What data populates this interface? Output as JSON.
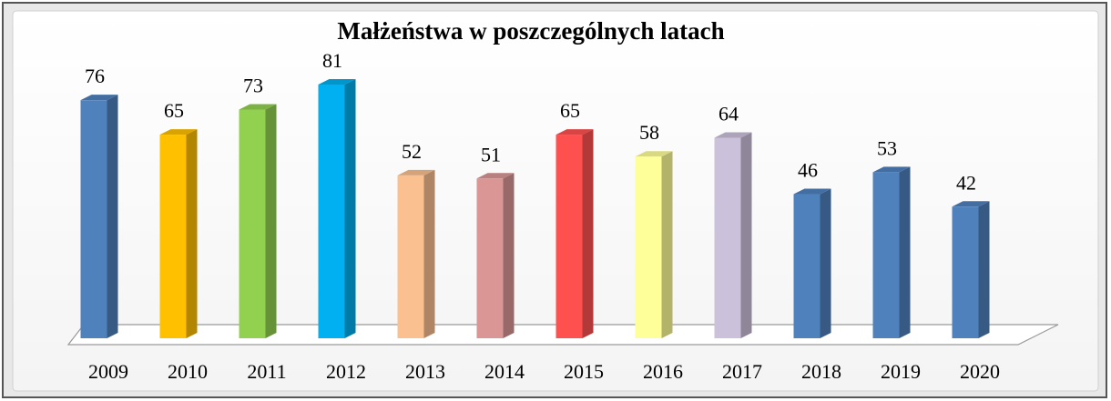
{
  "chart_data": {
    "type": "bar",
    "title": "Małżeństwa w poszczególnych latach",
    "categories": [
      "2009",
      "2010",
      "2011",
      "2012",
      "2013",
      "2014",
      "2015",
      "2016",
      "2017",
      "2018",
      "2019",
      "2020"
    ],
    "values": [
      76,
      65,
      73,
      81,
      52,
      51,
      65,
      58,
      64,
      46,
      53,
      42
    ],
    "colors": [
      "#4f81bd",
      "#ffc000",
      "#92d050",
      "#00b0f0",
      "#fac090",
      "#d99694",
      "#ff5050",
      "#ffff99",
      "#ccc1da",
      "#4f81bd",
      "#4f81bd",
      "#4f81bd"
    ]
  }
}
